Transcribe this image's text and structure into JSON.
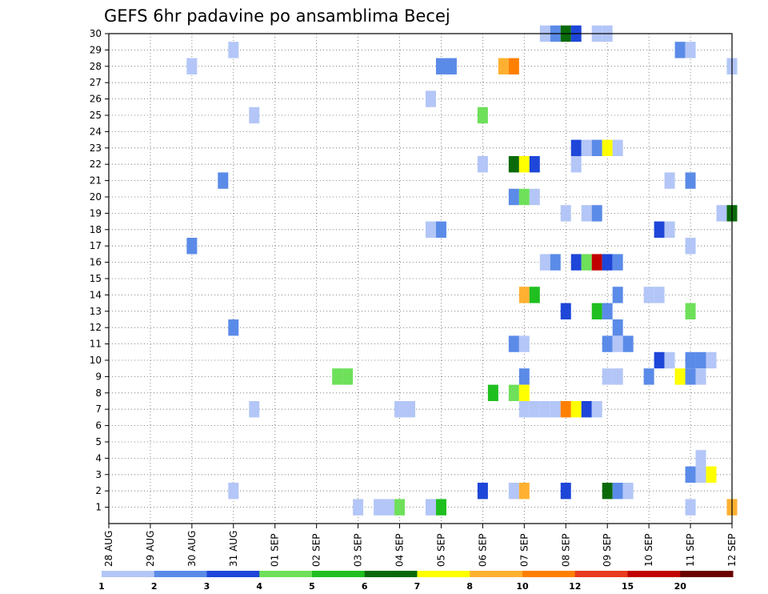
{
  "chart_data": {
    "type": "heatmap",
    "title": "GEFS 6hr padavine po ansamblima Becej",
    "y_ticks": [
      "1",
      "2",
      "3",
      "4",
      "5",
      "6",
      "7",
      "8",
      "9",
      "10",
      "11",
      "12",
      "13",
      "14",
      "15",
      "16",
      "17",
      "18",
      "19",
      "20",
      "21",
      "22",
      "23",
      "24",
      "25",
      "26",
      "27",
      "28",
      "29",
      "30"
    ],
    "x_ticks": [
      {
        "label": "28 AUG",
        "day": 0
      },
      {
        "label": "29 AUG",
        "day": 1
      },
      {
        "label": "30 AUG",
        "day": 2
      },
      {
        "label": "31 AUG",
        "day": 3
      },
      {
        "label": "01 SEP",
        "day": 4
      },
      {
        "label": "02 SEP",
        "day": 5
      },
      {
        "label": "03 SEP",
        "day": 6
      },
      {
        "label": "04 SEP",
        "day": 7
      },
      {
        "label": "05 SEP",
        "day": 8
      },
      {
        "label": "06 SEP",
        "day": 9
      },
      {
        "label": "07 SEP",
        "day": 10
      },
      {
        "label": "08 SEP",
        "day": 11
      },
      {
        "label": "09 SEP",
        "day": 12
      },
      {
        "label": "10 SEP",
        "day": 13
      },
      {
        "label": "11 SEP",
        "day": 14
      },
      {
        "label": "12 SEP",
        "day": 15
      }
    ],
    "xlim": [
      0,
      15
    ],
    "ylim": [
      0,
      30
    ],
    "grid": true,
    "colorbar": {
      "labels": [
        "1",
        "2",
        "3",
        "4",
        "5",
        "6",
        "7",
        "8",
        "10",
        "12",
        "15",
        "20"
      ],
      "colors": [
        "#b3c6f7",
        "#5b8be8",
        "#1e46d8",
        "#6ee05a",
        "#1fbf1f",
        "#0a6a0a",
        "#ffff00",
        "#ffb030",
        "#ff7f00",
        "#e83c1e",
        "#c00000",
        "#6a0000"
      ],
      "placement": "bottom"
    },
    "cells": [
      {
        "day": 10.5,
        "member": 30,
        "level": 1
      },
      {
        "day": 10.75,
        "member": 30,
        "level": 2
      },
      {
        "day": 11.0,
        "member": 30,
        "level": 6
      },
      {
        "day": 11.25,
        "member": 30,
        "level": 3
      },
      {
        "day": 11.75,
        "member": 30,
        "level": 1
      },
      {
        "day": 12.0,
        "member": 30,
        "level": 1
      },
      {
        "day": 3.0,
        "member": 29,
        "level": 1
      },
      {
        "day": 13.75,
        "member": 29,
        "level": 2
      },
      {
        "day": 14.0,
        "member": 29,
        "level": 1
      },
      {
        "day": 2.0,
        "member": 28,
        "level": 1
      },
      {
        "day": 8.0,
        "member": 28,
        "level": 2
      },
      {
        "day": 8.25,
        "member": 28,
        "level": 2
      },
      {
        "day": 9.5,
        "member": 28,
        "level": 8
      },
      {
        "day": 9.75,
        "member": 28,
        "level": 9
      },
      {
        "day": 15.0,
        "member": 28,
        "level": 1
      },
      {
        "day": 7.75,
        "member": 26,
        "level": 1
      },
      {
        "day": 3.5,
        "member": 25,
        "level": 1
      },
      {
        "day": 9.0,
        "member": 25,
        "level": 4
      },
      {
        "day": 11.25,
        "member": 23,
        "level": 3
      },
      {
        "day": 11.5,
        "member": 23,
        "level": 1
      },
      {
        "day": 11.75,
        "member": 23,
        "level": 2
      },
      {
        "day": 12.0,
        "member": 23,
        "level": 7
      },
      {
        "day": 12.25,
        "member": 23,
        "level": 1
      },
      {
        "day": 9.0,
        "member": 22,
        "level": 1
      },
      {
        "day": 9.75,
        "member": 22,
        "level": 6
      },
      {
        "day": 10.0,
        "member": 22,
        "level": 7
      },
      {
        "day": 10.25,
        "member": 22,
        "level": 3
      },
      {
        "day": 11.25,
        "member": 22,
        "level": 1
      },
      {
        "day": 2.75,
        "member": 21,
        "level": 2
      },
      {
        "day": 13.5,
        "member": 21,
        "level": 1
      },
      {
        "day": 14.0,
        "member": 21,
        "level": 2
      },
      {
        "day": 9.75,
        "member": 20,
        "level": 2
      },
      {
        "day": 10.0,
        "member": 20,
        "level": 4
      },
      {
        "day": 10.25,
        "member": 20,
        "level": 1
      },
      {
        "day": 11.0,
        "member": 19,
        "level": 1
      },
      {
        "day": 11.5,
        "member": 19,
        "level": 1
      },
      {
        "day": 11.75,
        "member": 19,
        "level": 2
      },
      {
        "day": 14.75,
        "member": 19,
        "level": 1
      },
      {
        "day": 15.0,
        "member": 19,
        "level": 6
      },
      {
        "day": 7.75,
        "member": 18,
        "level": 1
      },
      {
        "day": 8.0,
        "member": 18,
        "level": 2
      },
      {
        "day": 13.25,
        "member": 18,
        "level": 3
      },
      {
        "day": 13.5,
        "member": 18,
        "level": 1
      },
      {
        "day": 2.0,
        "member": 17,
        "level": 2
      },
      {
        "day": 14.0,
        "member": 17,
        "level": 1
      },
      {
        "day": 10.5,
        "member": 16,
        "level": 1
      },
      {
        "day": 10.75,
        "member": 16,
        "level": 2
      },
      {
        "day": 11.25,
        "member": 16,
        "level": 3
      },
      {
        "day": 11.5,
        "member": 16,
        "level": 4
      },
      {
        "day": 11.75,
        "member": 16,
        "level": 11
      },
      {
        "day": 12.0,
        "member": 16,
        "level": 3
      },
      {
        "day": 12.25,
        "member": 16,
        "level": 2
      },
      {
        "day": 10.0,
        "member": 14,
        "level": 8
      },
      {
        "day": 10.25,
        "member": 14,
        "level": 5
      },
      {
        "day": 12.25,
        "member": 14,
        "level": 2
      },
      {
        "day": 13.0,
        "member": 14,
        "level": 1
      },
      {
        "day": 13.25,
        "member": 14,
        "level": 1
      },
      {
        "day": 11.0,
        "member": 13,
        "level": 3
      },
      {
        "day": 11.75,
        "member": 13,
        "level": 5
      },
      {
        "day": 12.0,
        "member": 13,
        "level": 2
      },
      {
        "day": 14.0,
        "member": 13,
        "level": 4
      },
      {
        "day": 3.0,
        "member": 12,
        "level": 2
      },
      {
        "day": 12.25,
        "member": 12,
        "level": 2
      },
      {
        "day": 9.75,
        "member": 11,
        "level": 2
      },
      {
        "day": 10.0,
        "member": 11,
        "level": 1
      },
      {
        "day": 12.0,
        "member": 11,
        "level": 2
      },
      {
        "day": 12.25,
        "member": 11,
        "level": 1
      },
      {
        "day": 12.5,
        "member": 11,
        "level": 2
      },
      {
        "day": 13.25,
        "member": 10,
        "level": 3
      },
      {
        "day": 13.5,
        "member": 10,
        "level": 1
      },
      {
        "day": 14.0,
        "member": 10,
        "level": 2
      },
      {
        "day": 14.25,
        "member": 10,
        "level": 2
      },
      {
        "day": 14.5,
        "member": 10,
        "level": 1
      },
      {
        "day": 5.5,
        "member": 9,
        "level": 4
      },
      {
        "day": 5.75,
        "member": 9,
        "level": 4
      },
      {
        "day": 10.0,
        "member": 9,
        "level": 2
      },
      {
        "day": 12.0,
        "member": 9,
        "level": 1
      },
      {
        "day": 12.25,
        "member": 9,
        "level": 1
      },
      {
        "day": 13.0,
        "member": 9,
        "level": 2
      },
      {
        "day": 13.75,
        "member": 9,
        "level": 7
      },
      {
        "day": 14.0,
        "member": 9,
        "level": 2
      },
      {
        "day": 14.25,
        "member": 9,
        "level": 1
      },
      {
        "day": 9.25,
        "member": 8,
        "level": 5
      },
      {
        "day": 9.75,
        "member": 8,
        "level": 4
      },
      {
        "day": 10.0,
        "member": 8,
        "level": 7
      },
      {
        "day": 3.5,
        "member": 7,
        "level": 1
      },
      {
        "day": 7.0,
        "member": 7,
        "level": 1
      },
      {
        "day": 7.25,
        "member": 7,
        "level": 1
      },
      {
        "day": 10.0,
        "member": 7,
        "level": 1
      },
      {
        "day": 10.25,
        "member": 7,
        "level": 1
      },
      {
        "day": 10.5,
        "member": 7,
        "level": 1
      },
      {
        "day": 10.75,
        "member": 7,
        "level": 1
      },
      {
        "day": 11.0,
        "member": 7,
        "level": 9
      },
      {
        "day": 11.25,
        "member": 7,
        "level": 7
      },
      {
        "day": 11.5,
        "member": 7,
        "level": 3
      },
      {
        "day": 11.75,
        "member": 7,
        "level": 1
      },
      {
        "day": 14.25,
        "member": 4,
        "level": 1
      },
      {
        "day": 14.0,
        "member": 3,
        "level": 2
      },
      {
        "day": 14.25,
        "member": 3,
        "level": 1
      },
      {
        "day": 14.5,
        "member": 3,
        "level": 7
      },
      {
        "day": 3.0,
        "member": 2,
        "level": 1
      },
      {
        "day": 9.0,
        "member": 2,
        "level": 3
      },
      {
        "day": 9.75,
        "member": 2,
        "level": 1
      },
      {
        "day": 10.0,
        "member": 2,
        "level": 8
      },
      {
        "day": 11.0,
        "member": 2,
        "level": 3
      },
      {
        "day": 12.0,
        "member": 2,
        "level": 6
      },
      {
        "day": 12.25,
        "member": 2,
        "level": 2
      },
      {
        "day": 12.5,
        "member": 2,
        "level": 1
      },
      {
        "day": 6.0,
        "member": 1,
        "level": 1
      },
      {
        "day": 6.5,
        "member": 1,
        "level": 1
      },
      {
        "day": 6.75,
        "member": 1,
        "level": 1
      },
      {
        "day": 7.0,
        "member": 1,
        "level": 4
      },
      {
        "day": 7.75,
        "member": 1,
        "level": 1
      },
      {
        "day": 8.0,
        "member": 1,
        "level": 5
      },
      {
        "day": 14.0,
        "member": 1,
        "level": 1
      },
      {
        "day": 15.0,
        "member": 1,
        "level": 8
      }
    ]
  }
}
